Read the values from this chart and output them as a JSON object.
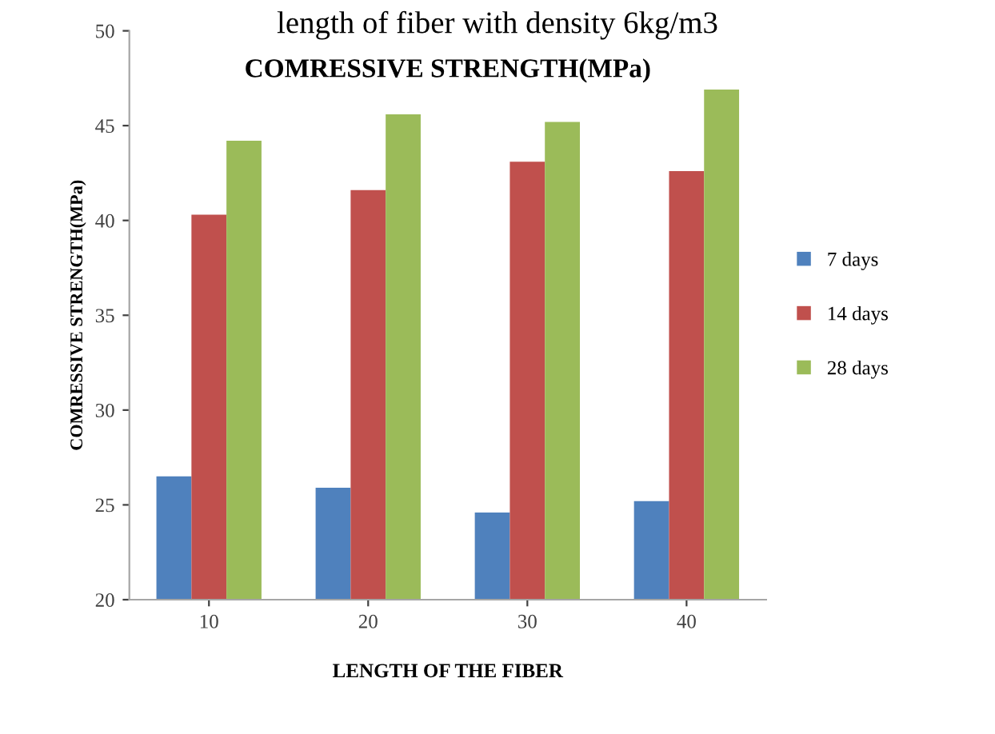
{
  "chart_data": {
    "type": "bar",
    "title": "COMRESSIVE STRENGTH(MPa)",
    "xlabel": "LENGTH OF THE FIBER",
    "ylabel": "COMRESSIVE STRENGTH(MPa)",
    "annotations": [
      "length of fiber with density 6kg/m3"
    ],
    "categories": [
      "10",
      "20",
      "30",
      "40"
    ],
    "series": [
      {
        "name": "7 days",
        "color": "#4f81bd",
        "values": [
          26.5,
          25.9,
          24.6,
          25.2
        ]
      },
      {
        "name": "14 days",
        "color": "#c0504d",
        "values": [
          40.3,
          41.6,
          43.1,
          42.6
        ]
      },
      {
        "name": "28 days",
        "color": "#9bbb59",
        "values": [
          44.2,
          45.6,
          45.2,
          46.9
        ]
      }
    ],
    "ylim": [
      20,
      50
    ],
    "yticks": [
      20,
      25,
      30,
      35,
      40,
      45,
      50
    ],
    "grid": false,
    "legend": "right"
  }
}
